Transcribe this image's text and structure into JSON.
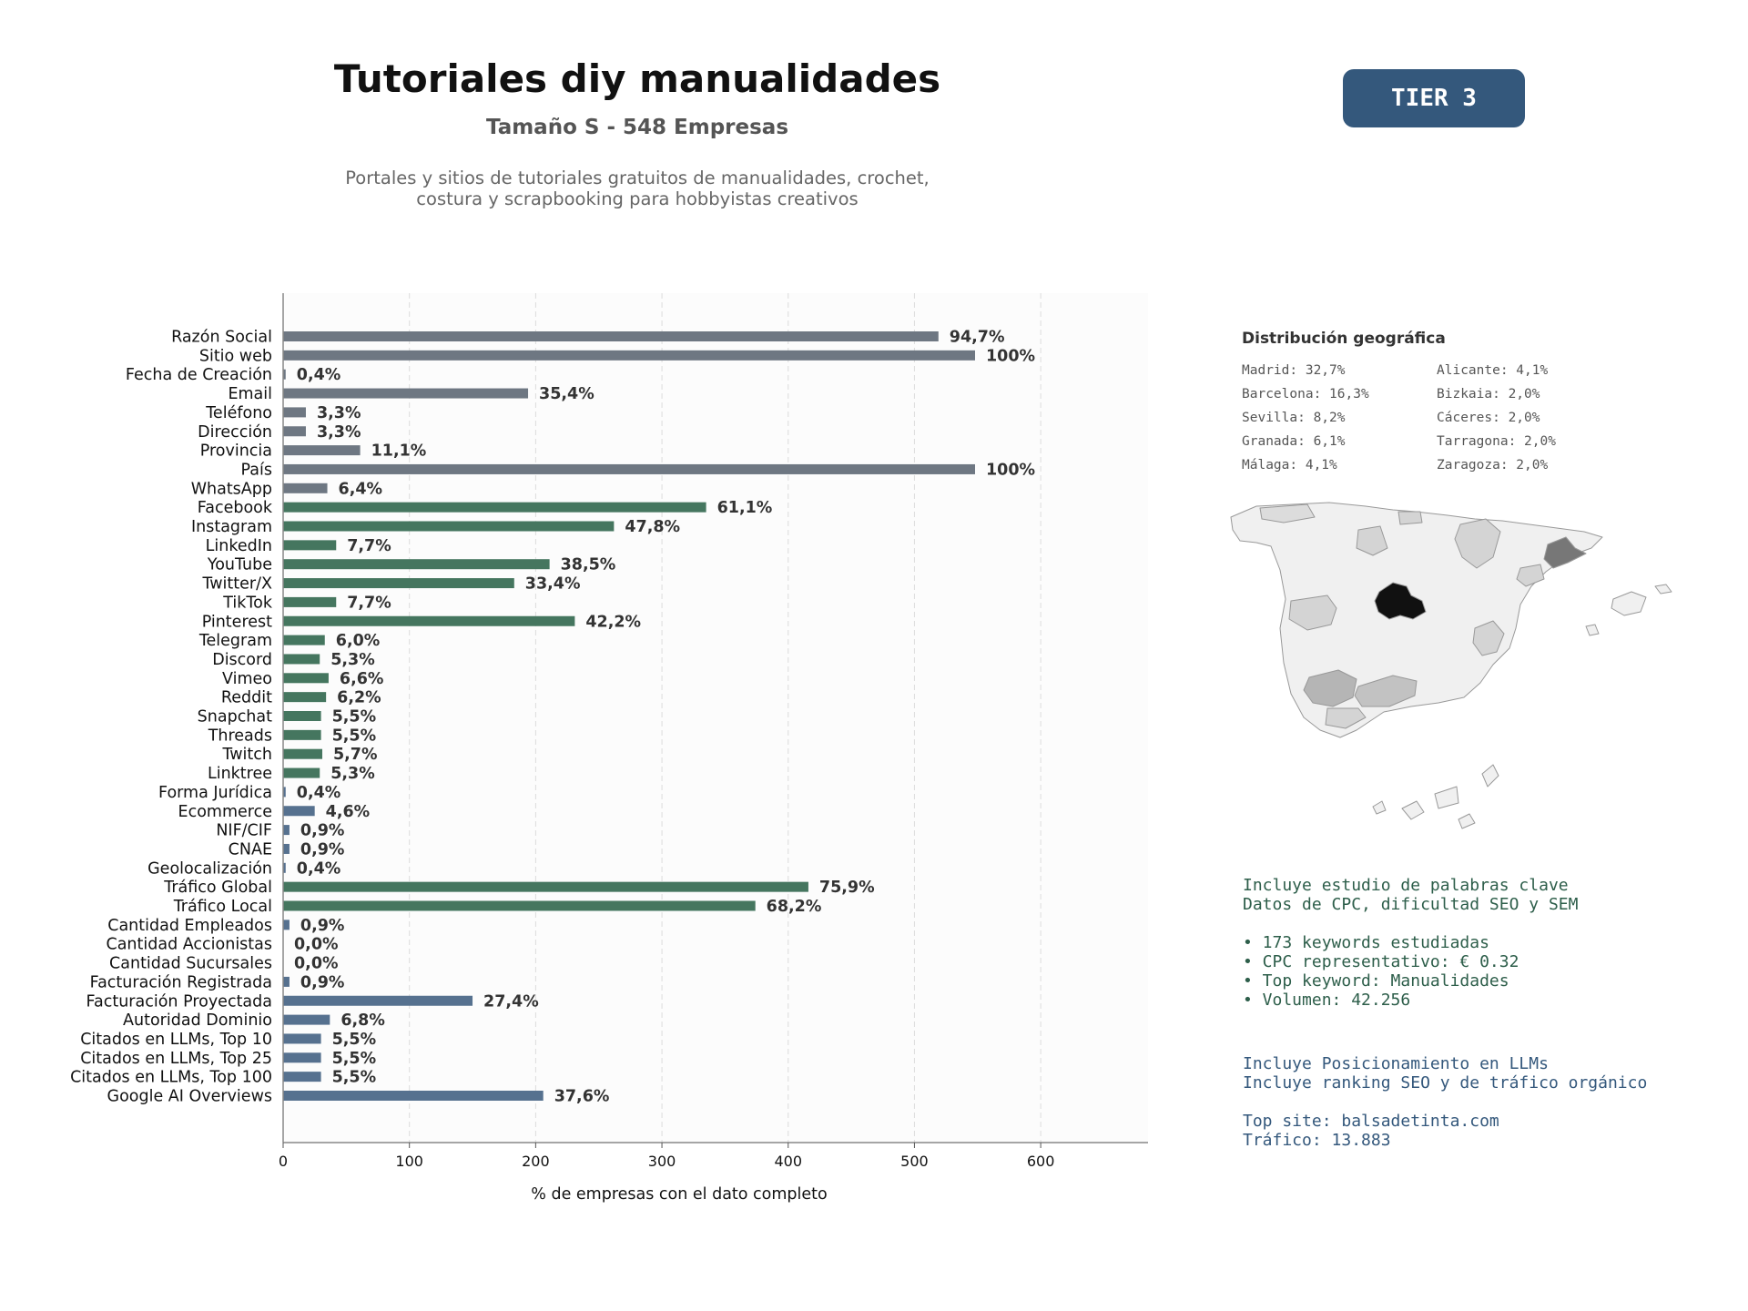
{
  "header": {
    "title": "Tutoriales diy manualidades",
    "subtitle": "Tamaño S - 548 Empresas",
    "description_lines": [
      "Portales y sitios de tutoriales gratuitos de manualidades, crochet,",
      "costura y scrapbooking para hobbyistas creativos"
    ],
    "tier_badge": "TIER 3"
  },
  "chart_data": {
    "type": "bar",
    "orientation": "horizontal",
    "title": "",
    "xlabel": "% de empresas con el dato completo",
    "ylabel": "",
    "xlim": [
      0,
      685
    ],
    "xticks": [
      0,
      100,
      200,
      300,
      400,
      500,
      600
    ],
    "grid": true,
    "categories": [
      "Razón Social",
      "Sitio web",
      "Fecha de Creación",
      "Email",
      "Teléfono",
      "Dirección",
      "Provincia",
      "País",
      "WhatsApp",
      "Facebook",
      "Instagram",
      "LinkedIn",
      "YouTube",
      "Twitter/X",
      "TikTok",
      "Pinterest",
      "Telegram",
      "Discord",
      "Vimeo",
      "Reddit",
      "Snapchat",
      "Threads",
      "Twitch",
      "Linktree",
      "Forma Jurídica",
      "Ecommerce",
      "NIF/CIF",
      "CNAE",
      "Geolocalización",
      "Tráfico Global",
      "Tráfico Local",
      "Cantidad Empleados",
      "Cantidad Accionistas",
      "Cantidad Sucursales",
      "Facturación Registrada",
      "Facturación Proyectada",
      "Autoridad Dominio",
      "Citados en LLMs, Top 10",
      "Citados en LLMs, Top 25",
      "Citados en LLMs, Top 100",
      "Google AI Overviews"
    ],
    "values": [
      519,
      548,
      2,
      194,
      18,
      18,
      61,
      548,
      35,
      335,
      262,
      42,
      211,
      183,
      42,
      231,
      33,
      29,
      36,
      34,
      30,
      30,
      31,
      29,
      2,
      25,
      5,
      5,
      2,
      416,
      374,
      5,
      0,
      0,
      5,
      150,
      37,
      30,
      30,
      30,
      206
    ],
    "labels": [
      "94,7%",
      "100%",
      "0,4%",
      "35,4%",
      "3,3%",
      "3,3%",
      "11,1%",
      "100%",
      "6,4%",
      "61,1%",
      "47,8%",
      "7,7%",
      "38,5%",
      "33,4%",
      "7,7%",
      "42,2%",
      "6,0%",
      "5,3%",
      "6,6%",
      "6,2%",
      "5,5%",
      "5,5%",
      "5,7%",
      "5,3%",
      "0,4%",
      "4,6%",
      "0,9%",
      "0,9%",
      "0,4%",
      "75,9%",
      "68,2%",
      "0,9%",
      "0,0%",
      "0,0%",
      "0,9%",
      "27,4%",
      "6,8%",
      "5,5%",
      "5,5%",
      "5,5%",
      "37,6%"
    ],
    "groups": [
      "contacto",
      "contacto",
      "contacto",
      "contacto",
      "contacto",
      "contacto",
      "contacto",
      "contacto",
      "contacto",
      "social",
      "social",
      "social",
      "social",
      "social",
      "social",
      "social",
      "social",
      "social",
      "social",
      "social",
      "social",
      "social",
      "social",
      "social",
      "empresa",
      "empresa",
      "empresa",
      "empresa",
      "empresa",
      "trafico",
      "trafico",
      "empresa",
      "empresa",
      "empresa",
      "empresa",
      "empresa",
      "empresa",
      "empresa",
      "empresa",
      "empresa",
      "empresa"
    ],
    "group_colors": {
      "contacto": "#6e7782",
      "social": "#45765f",
      "trafico": "#45765f",
      "empresa": "#56718f"
    }
  },
  "geo": {
    "title": "Distribución geográfica",
    "entries": [
      "Madrid: 32,7%",
      "Alicante: 4,1%",
      "Barcelona: 16,3%",
      "Bizkaia: 2,0%",
      "Sevilla: 8,2%",
      "Cáceres: 2,0%",
      "Granada: 6,1%",
      "Tarragona: 2,0%",
      "Málaga: 4,1%",
      "Zaragoza: 2,0%"
    ]
  },
  "keywords": {
    "lines": [
      "Incluye estudio de palabras clave",
      "Datos de CPC, dificultad SEO y SEM",
      "",
      "• 173 keywords estudiadas",
      "• CPC representativo: € 0.32",
      "• Top keyword: Manualidades",
      "• Volumen: 42.256"
    ]
  },
  "llm": {
    "lines": [
      "Incluye Posicionamiento en LLMs",
      "Incluye ranking SEO y de tráfico orgánico",
      "",
      "Top site: balsadetinta.com",
      "Tráfico: 13.883"
    ]
  },
  "colors": {
    "badge_bg": "#34587c",
    "keywords_text": "#2d5e4a",
    "llm_text": "#34587c",
    "map_madrid": "#111111",
    "map_barcelona": "#777777",
    "map_mid": "#b5b5b5",
    "map_low": "#d4d4d4",
    "map_base": "#f0f0f0"
  }
}
